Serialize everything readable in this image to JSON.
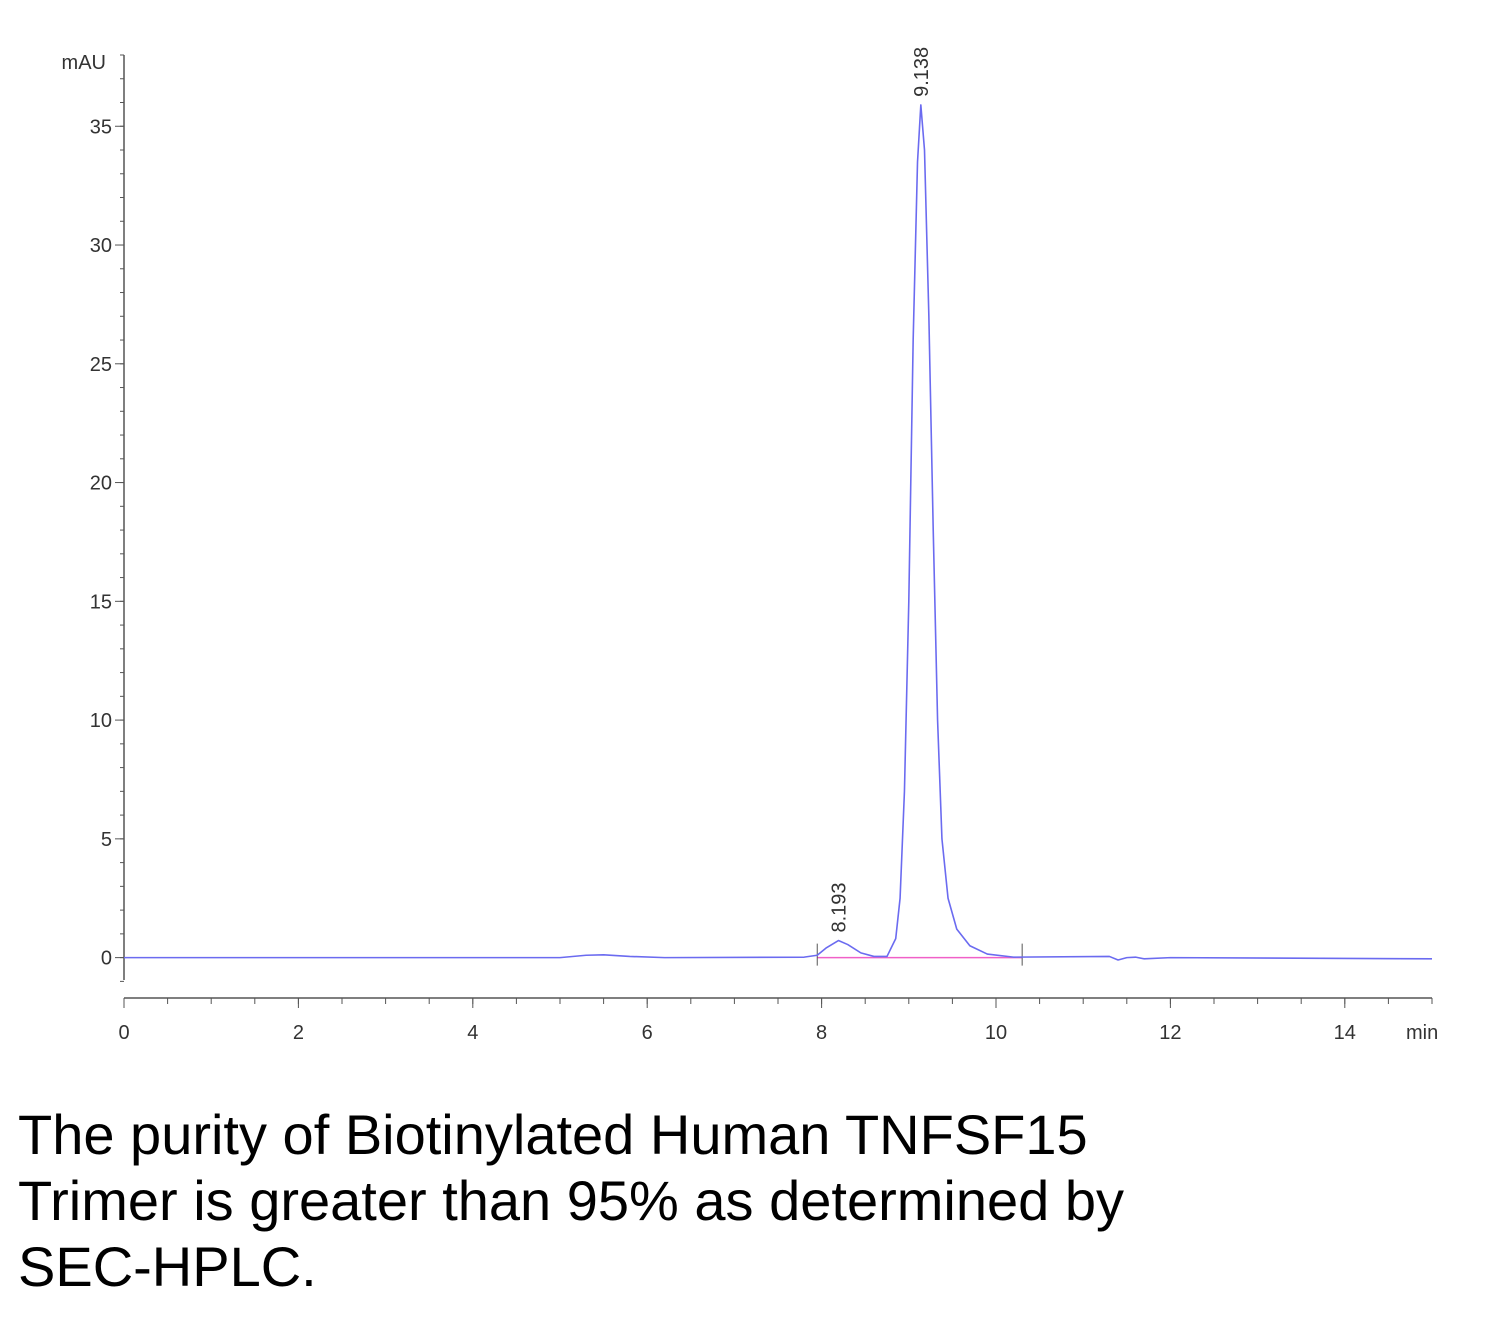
{
  "chart_data": {
    "type": "line",
    "ylabel": "mAU",
    "xlabel": "min",
    "x": [
      0,
      5.0,
      5.3,
      5.5,
      5.8,
      6.2,
      7.8,
      7.95,
      8.05,
      8.193,
      8.3,
      8.45,
      8.6,
      8.75,
      8.85,
      8.9,
      8.95,
      9.0,
      9.05,
      9.1,
      9.138,
      9.18,
      9.23,
      9.28,
      9.33,
      9.38,
      9.45,
      9.55,
      9.7,
      9.9,
      10.2,
      11.3,
      11.4,
      11.5,
      11.6,
      11.7,
      12,
      15
    ],
    "values": [
      0,
      0,
      0.1,
      0.12,
      0.05,
      0,
      0.02,
      0.1,
      0.4,
      0.72,
      0.55,
      0.2,
      0.05,
      0.05,
      0.8,
      2.5,
      7,
      15,
      26,
      33.5,
      35.9,
      34,
      27,
      18,
      10,
      5,
      2.5,
      1.2,
      0.5,
      0.15,
      0.02,
      0.05,
      -0.1,
      0,
      0.02,
      -0.05,
      0,
      -0.05
    ],
    "color": "#6b6bf0",
    "integration_baseline": {
      "x": [
        7.95,
        10.3
      ],
      "values": [
        0,
        0
      ],
      "color": "#f060c8"
    },
    "annotations": [
      {
        "text": "8.193",
        "x": 8.193,
        "y": 0.72
      },
      {
        "text": "9.138",
        "x": 9.138,
        "y": 35.9
      }
    ],
    "xlim": [
      0,
      15
    ],
    "ylim": [
      -1.7,
      38
    ],
    "xticks": [
      0,
      2,
      4,
      6,
      8,
      10,
      12,
      14
    ],
    "yticks": [
      0,
      5,
      10,
      15,
      20,
      25,
      30,
      35
    ],
    "x_minor_step": 0.5,
    "y_minor_step": 1
  },
  "caption": [
    "The purity of Biotinylated Human TNFSF15",
    "Trimer is greater than 95% as determined by",
    "SEC-HPLC."
  ]
}
